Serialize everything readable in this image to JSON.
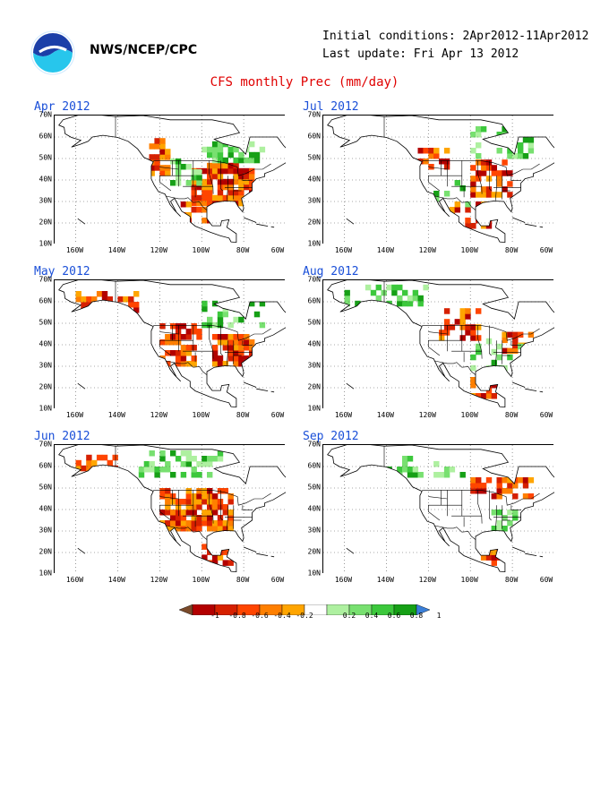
{
  "header": {
    "org": "NWS/NCEP/CPC",
    "initial_conditions": "Initial conditions: 2Apr2012-11Apr2012",
    "last_update": "Last update: Fri Apr 13 2012",
    "title": "CFS monthly Prec (mm/day)"
  },
  "axes": {
    "y_ticks": [
      "70N",
      "60N",
      "50N",
      "40N",
      "30N",
      "20N",
      "10N"
    ],
    "x_ticks": [
      "160W",
      "140W",
      "120W",
      "100W",
      "80W",
      "60W"
    ]
  },
  "panels": [
    {
      "label": "Apr 2012",
      "region": "North America"
    },
    {
      "label": "Jul 2012",
      "region": "North America"
    },
    {
      "label": "May 2012",
      "region": "North America"
    },
    {
      "label": "Aug 2012",
      "region": "North America"
    },
    {
      "label": "Jun 2012",
      "region": "North America"
    },
    {
      "label": "Sep 2012",
      "region": "North America"
    }
  ],
  "colorbar": {
    "ticks": [
      "-1",
      "-0.8",
      "-0.6",
      "-0.4",
      "-0.2",
      "0.2",
      "0.4",
      "0.6",
      "0.8",
      "1"
    ],
    "colors": [
      "#7a4a2a",
      "#b30000",
      "#d62000",
      "#ff4500",
      "#ff7f00",
      "#ffa500",
      "#ffffff",
      "#aef0a0",
      "#78e070",
      "#3cc83c",
      "#16a016",
      "#3a7fd8"
    ]
  },
  "colors": {
    "title": "#e00000",
    "panel_title": "#1a4fd8"
  }
}
